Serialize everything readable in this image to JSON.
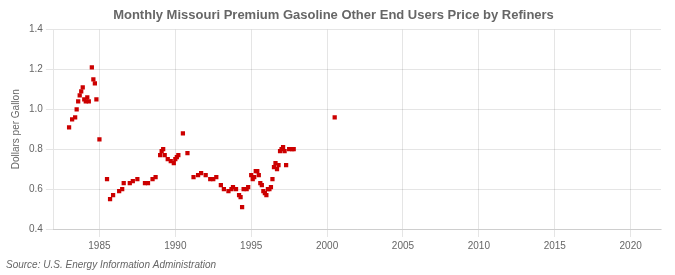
{
  "chart_data": {
    "type": "scatter",
    "title": "Monthly Missouri Premium Gasoline Other End Users Price by Refiners",
    "ylabel": "Dollars per Gallon",
    "source": "Source: U.S. Energy Information Administration",
    "color": "#cc0000",
    "marker": "square",
    "grid": true,
    "xlim": [
      1982,
      2022
    ],
    "ylim": [
      0.4,
      1.4
    ],
    "xticks": [
      1985,
      1990,
      1995,
      2000,
      2005,
      2010,
      2015,
      2020
    ],
    "yticks": [
      0.4,
      0.6,
      0.8,
      {
        "value": 1.0,
        "label": "1.0"
      },
      1.2,
      1.4
    ],
    "x": [
      1983.0,
      1983.2,
      1983.4,
      1983.5,
      1983.6,
      1983.7,
      1983.8,
      1983.9,
      1984.0,
      1984.1,
      1984.2,
      1984.3,
      1984.5,
      1984.6,
      1984.7,
      1984.8,
      1985.0,
      1985.5,
      1985.7,
      1985.9,
      1986.3,
      1986.5,
      1986.6,
      1987.0,
      1987.2,
      1987.5,
      1988.0,
      1988.2,
      1988.5,
      1988.7,
      1989.0,
      1989.1,
      1989.2,
      1989.3,
      1989.5,
      1989.7,
      1989.9,
      1990.0,
      1990.1,
      1990.2,
      1990.5,
      1990.8,
      1991.2,
      1991.5,
      1991.7,
      1992.0,
      1992.3,
      1992.5,
      1992.7,
      1993.0,
      1993.2,
      1993.5,
      1993.7,
      1993.8,
      1994.0,
      1994.2,
      1994.3,
      1994.4,
      1994.5,
      1994.7,
      1994.8,
      1995.0,
      1995.1,
      1995.2,
      1995.3,
      1995.4,
      1995.5,
      1995.6,
      1995.7,
      1995.8,
      1995.9,
      1996.0,
      1996.1,
      1996.2,
      1996.3,
      1996.4,
      1996.5,
      1996.6,
      1996.7,
      1996.8,
      1996.9,
      1997.0,
      1997.1,
      1997.2,
      1997.3,
      1997.5,
      1997.7,
      1997.8,
      2000.5
    ],
    "values": [
      0.91,
      0.95,
      0.96,
      1.0,
      1.04,
      1.07,
      1.09,
      1.11,
      1.05,
      1.04,
      1.06,
      1.04,
      1.21,
      1.15,
      1.13,
      1.05,
      0.85,
      0.65,
      0.55,
      0.57,
      0.59,
      0.6,
      0.63,
      0.63,
      0.64,
      0.65,
      0.63,
      0.63,
      0.65,
      0.66,
      0.77,
      0.79,
      0.8,
      0.77,
      0.75,
      0.74,
      0.73,
      0.75,
      0.76,
      0.77,
      0.88,
      0.78,
      0.66,
      0.67,
      0.68,
      0.67,
      0.65,
      0.65,
      0.66,
      0.62,
      0.6,
      0.59,
      0.6,
      0.61,
      0.6,
      0.57,
      0.56,
      0.51,
      0.6,
      0.6,
      0.61,
      0.67,
      0.65,
      0.66,
      0.69,
      0.69,
      0.67,
      0.63,
      0.62,
      0.59,
      0.58,
      0.57,
      0.6,
      0.6,
      0.61,
      0.65,
      0.71,
      0.73,
      0.7,
      0.72,
      0.79,
      0.8,
      0.81,
      0.79,
      0.72,
      0.8,
      0.8,
      0.8,
      0.96
    ]
  }
}
